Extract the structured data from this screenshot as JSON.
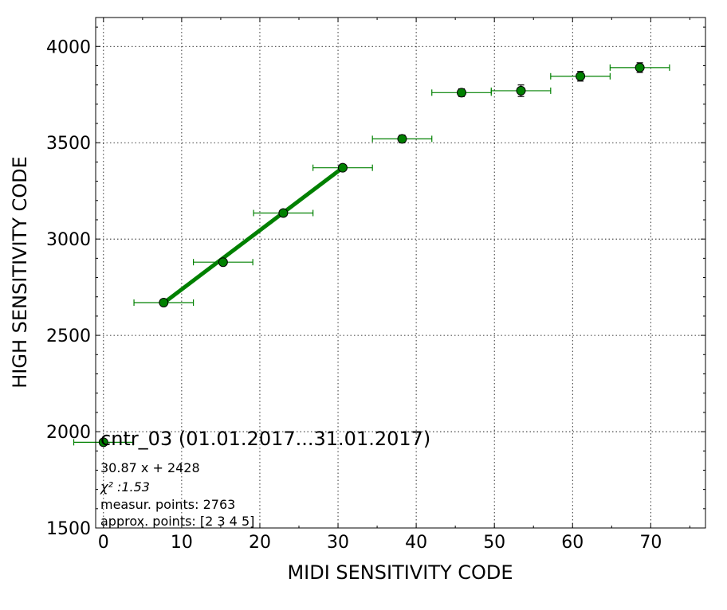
{
  "chart_data": {
    "type": "scatter",
    "xlabel": "MIDI SENSITIVITY CODE",
    "ylabel": "HIGH SENSITIVITY CODE",
    "xlim": [
      -1,
      77
    ],
    "ylim": [
      1500,
      4150
    ],
    "grid": true,
    "x_ticks": [
      0,
      10,
      20,
      30,
      40,
      50,
      60,
      70
    ],
    "y_ticks": [
      1500,
      2000,
      2500,
      3000,
      3500,
      4000
    ],
    "colors": {
      "marker": "#008000",
      "fit_line": "#008000",
      "errorbar": "#008000",
      "grid": "#000000"
    },
    "series": [
      {
        "points": [
          {
            "x": 0.0,
            "y": 1945,
            "xerr": 3.8,
            "yerr": 0
          },
          {
            "x": 7.7,
            "y": 2670,
            "xerr": 3.8,
            "yerr": 8
          },
          {
            "x": 15.3,
            "y": 2880,
            "xerr": 3.8,
            "yerr": 8
          },
          {
            "x": 23.0,
            "y": 3135,
            "xerr": 3.8,
            "yerr": 8
          },
          {
            "x": 30.6,
            "y": 3370,
            "xerr": 3.8,
            "yerr": 10
          },
          {
            "x": 38.2,
            "y": 3520,
            "xerr": 3.8,
            "yerr": 20
          },
          {
            "x": 45.8,
            "y": 3760,
            "xerr": 3.8,
            "yerr": 20
          },
          {
            "x": 53.4,
            "y": 3770,
            "xerr": 3.8,
            "yerr": 30
          },
          {
            "x": 61.0,
            "y": 3845,
            "xerr": 3.8,
            "yerr": 25
          },
          {
            "x": 68.6,
            "y": 3890,
            "xerr": 3.8,
            "yerr": 25
          }
        ]
      }
    ],
    "fit_line": {
      "points": [
        [
          7.7,
          2668
        ],
        [
          30.6,
          3370
        ]
      ]
    },
    "annotation": {
      "title": "cntr_03 (01.01.2017...31.01.2017)",
      "lines": [
        "30.87 x + 2428",
        "χ² :1.53",
        "measur. points: 2763",
        "approx. points: [2 3 4 5]"
      ]
    }
  }
}
